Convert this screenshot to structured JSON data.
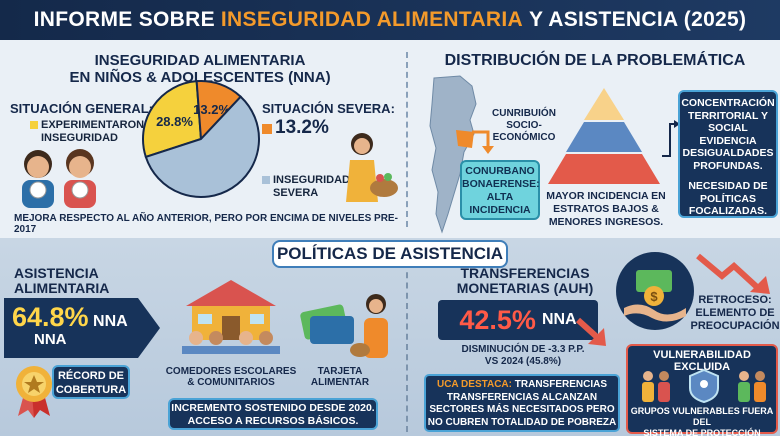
{
  "header": {
    "title_pre": "INFORME SOBRE",
    "title_highlight": "INSEGURIDAD ALIMENTARIA",
    "title_post": "Y ASISTENCIA (2025)"
  },
  "section_inseguridad": {
    "title_line1": "INSEGURIDAD ALIMENTARIA",
    "title_line2": "EN NIÑOS & ADOLESCENTES (NNA)",
    "situacion_general_label": "SITUACIÓN GENERAL:",
    "experimentaron_label_line1": "EXPERIMENTARON",
    "experimentaron_label_line2": "INSEGURIDAD",
    "situacion_severa_label": "SITUACIÓN SEVERA:",
    "severa_value": "13.2%",
    "inseguridad_severa_line1": "INSEGURIDAD",
    "inseguridad_severa_line2": "SEVERA",
    "footnote": "MEJORA RESPECTO AL AÑO ANTERIOR, PERO POR ENCIMA DE NIVELES PRE-2017"
  },
  "chart_data": {
    "type": "pie",
    "slices": [
      {
        "label": "28.8%",
        "value": 28.8,
        "color": "#f5d13d"
      },
      {
        "label": "13.2%",
        "value": 13.2,
        "color": "#ef8a2b"
      },
      {
        "label": "",
        "value": 58.0,
        "color": "#a9c1d8"
      }
    ]
  },
  "section_distribucion": {
    "title": "DISTRIBUCIÓN DE LA PROBLEMÁTICA",
    "pyramid_label_line1": "CUNRIBUIÓN",
    "pyramid_label_line2": "SOCIO-",
    "pyramid_label_line3": "ECONÓMICO",
    "conurbano_line1": "CONURBANO",
    "conurbano_line2": "BONAERENSE:",
    "conurbano_line3": "ALTA",
    "conurbano_line4": "INCIDENCIA",
    "mayor_line1": "MAYOR INCIDENCIA EN",
    "mayor_line2": "ESTRATOS BAJOS &",
    "mayor_line3": "MENORES INGRESOS.",
    "box_line1": "CONCENTRACIÓN",
    "box_line2": "TERRITORIAL Y",
    "box_line3": "SOCIAL EVIDENCIA",
    "box_line4": "DESIGUALDADES",
    "box_line5": "PROFUNDAS.",
    "box_line6": "NECESIDAD DE",
    "box_line7": "POLÍTICAS",
    "box_line8": "FOCALIZADAS."
  },
  "politicas": {
    "title": "POLÍTICAS DE ASISTENCIA"
  },
  "asistencia": {
    "title_line1": "ASISTENCIA",
    "title_line2": "ALIMENTARIA",
    "value": "64.8%",
    "unit": "NNA",
    "unit2": "NNA",
    "record_line1": "RÉCORD DE",
    "record_line2": "COBERTURA",
    "comedores_line1": "COMEDORES ESCOLARES",
    "comedores_line2": "& COMUNITARIOS",
    "tarjeta_line1": "TARJETA",
    "tarjeta_line2": "ALIMENTAR",
    "incremento_line1": "INCREMENTO SOSTENIDO DESDE 2020.",
    "incremento_line2": "ACCESO A RECURSOS BÁSICOS."
  },
  "transferencias": {
    "title_line1": "TRANSFERENCIAS",
    "title_line2": "MONETARIAS (AUH)",
    "value": "42.5%",
    "unit": "NNA",
    "disminucion_line1": "DISMINUCIÓN DE -3.3 P.P.",
    "disminucion_line2": "VS 2024 (45.8%)",
    "uca_label": "UCA DESTACA:",
    "uca_line1": "TRANSFERENCIAS",
    "uca_line2": "TRANSFERENCIAS ALCANZAN",
    "uca_line3": "SECTORES MÁS NECESITADOS PERO",
    "uca_line4": "NO CUBREN TOTALIDAD DE POBREZA",
    "retroceso_line1": "RETROCESO:",
    "retroceso_line2": "ELEMENTO DE",
    "retroceso_line3": "PREOCUPACIÓN"
  },
  "vulnerabilidad": {
    "title": "VULNERABILIDAD EXCLUIDA",
    "line1": "GRUPOS VULNERABLES FUERA DEL",
    "line2": "SISTEMA DE PROTECCIÓN SOCIAL"
  }
}
